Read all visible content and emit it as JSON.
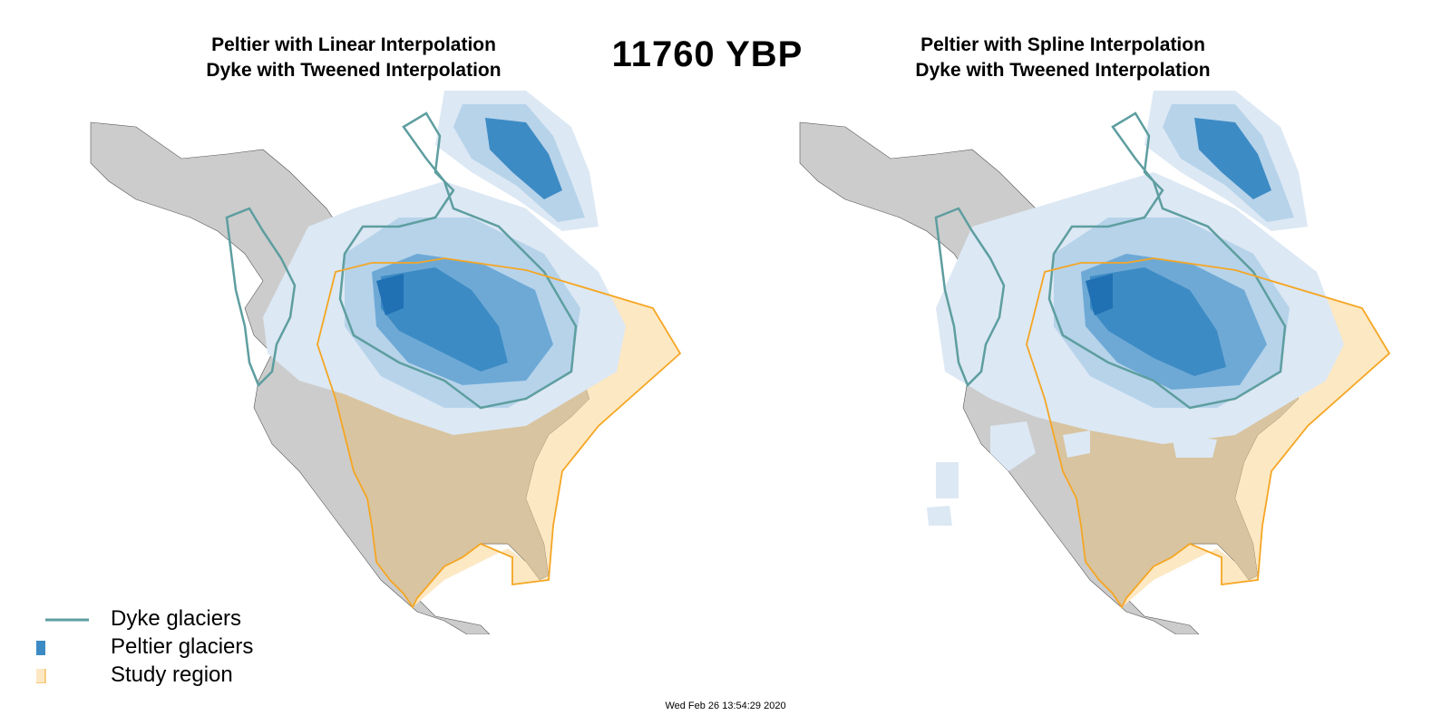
{
  "header": {
    "left_title_line1": "Peltier with Linear Interpolation",
    "left_title_line2": "Dyke with Tweened Interpolation",
    "main_title": "11760  YBP",
    "right_title_line1": "Peltier with Spline Interpolation",
    "right_title_line2": "Dyke with Tweened Interpolation"
  },
  "legend": {
    "items": [
      {
        "label": "Dyke glaciers",
        "color": "#5e9ea0",
        "type": "line"
      },
      {
        "label": "Peltier glaciers",
        "color": "#3d8bc4",
        "type": "fill"
      },
      {
        "label": "Study region",
        "color": "#fce8c3",
        "border": "#f5a623",
        "type": "fill"
      }
    ]
  },
  "colors": {
    "land": "#cccccc",
    "study_region_land": "#d8c4a0",
    "study_region_ocean": "#fce8c3",
    "study_region_border": "#f5a623",
    "dyke_outline": "#5e9ea0",
    "ice_levels": [
      "#dce8f4",
      "#b6d3ea",
      "#6ea9d6",
      "#3d8bc4",
      "#2070b4"
    ]
  },
  "footer": {
    "timestamp": "Wed Feb 26 13:54:29 2020"
  }
}
